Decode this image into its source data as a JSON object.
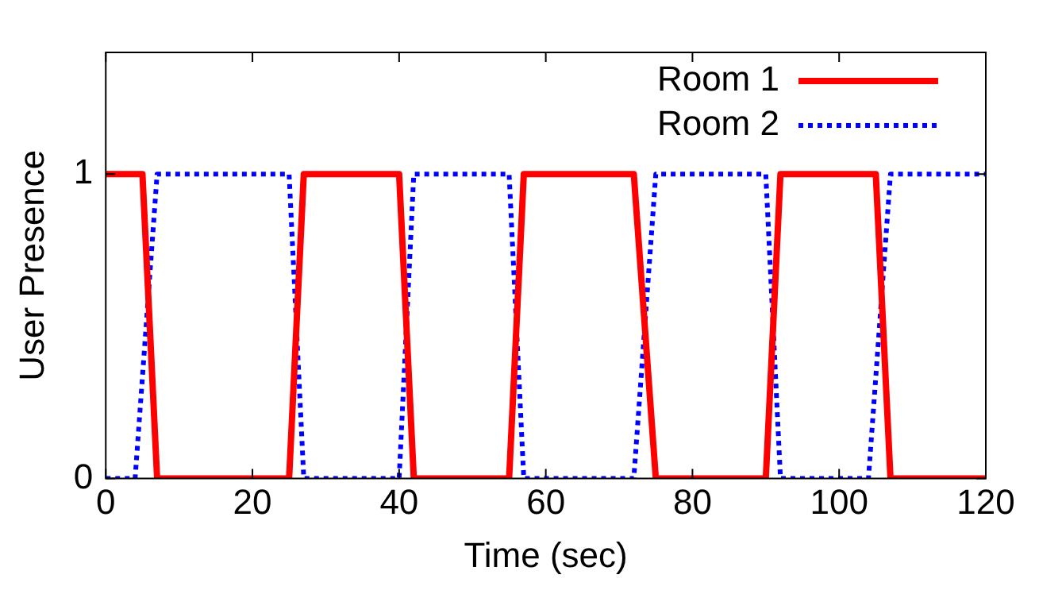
{
  "chart_data": {
    "type": "line",
    "xlabel": "Time (sec)",
    "ylabel": "User Presence",
    "xlim": [
      0,
      120
    ],
    "xticks": [
      0,
      20,
      40,
      60,
      80,
      100,
      120
    ],
    "ylim": [
      0,
      1.4
    ],
    "yticks": [
      0,
      1
    ],
    "grid": false,
    "legend": "top right",
    "marker": "none",
    "series": [
      {
        "name": "Room 1",
        "color": "#ff0000",
        "line_style": "solid",
        "x": [
          0,
          5,
          7,
          25,
          27,
          40,
          42,
          55,
          57,
          72,
          75,
          90,
          92,
          105,
          107,
          120
        ],
        "values": [
          1,
          1,
          0,
          0,
          1,
          1,
          0,
          0,
          1,
          1,
          0,
          0,
          1,
          1,
          0,
          0
        ]
      },
      {
        "name": "Room 2",
        "color": "#0000ff",
        "line_style": "dotted",
        "x": [
          0,
          4,
          7,
          25,
          27,
          40,
          42,
          55,
          57,
          72,
          75,
          90,
          92,
          104,
          107,
          120
        ],
        "values": [
          0,
          0,
          1,
          1,
          0,
          0,
          1,
          1,
          0,
          0,
          1,
          1,
          0,
          0,
          1,
          1
        ]
      }
    ]
  }
}
